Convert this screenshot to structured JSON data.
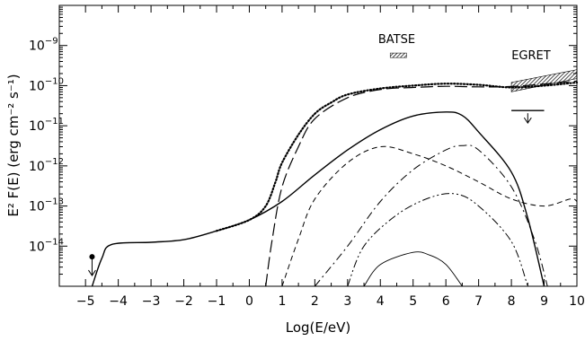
{
  "chart_data": {
    "type": "line",
    "title": "",
    "xlabel": "Log(E/eV)",
    "ylabel": "E² F(E) (erg cm⁻² s⁻¹)",
    "xlim": [
      -5.8,
      10
    ],
    "ylim": [
      1e-15,
      1e-08
    ],
    "yscale": "log",
    "x_ticks": [
      -5,
      -4,
      -3,
      -2,
      -1,
      0,
      1,
      2,
      3,
      4,
      5,
      6,
      7,
      8,
      9,
      10
    ],
    "y_ticks": [
      {
        "value": 1e-14,
        "exp": "−14"
      },
      {
        "value": 1e-13,
        "exp": "−13"
      },
      {
        "value": 1e-12,
        "exp": "−12"
      },
      {
        "value": 1e-11,
        "exp": "−11"
      },
      {
        "value": 1e-10,
        "exp": "−10"
      },
      {
        "value": 1e-09,
        "exp": "−9"
      }
    ],
    "series": [
      {
        "style": "dotted",
        "points": [
          [
            -1,
            2.4e-14
          ],
          [
            0,
            4.5e-14
          ],
          [
            0.5,
            1e-13
          ],
          [
            0.8,
            4e-13
          ],
          [
            1,
            1.2e-12
          ],
          [
            1.5,
            6e-12
          ],
          [
            2,
            2e-11
          ],
          [
            2.5,
            3.8e-11
          ],
          [
            3,
            6e-11
          ],
          [
            4,
            8.5e-11
          ],
          [
            5,
            1e-10
          ],
          [
            6,
            1.12e-10
          ],
          [
            7,
            1.05e-10
          ],
          [
            8,
            9e-11
          ],
          [
            9,
            1e-10
          ],
          [
            10,
            1.2e-10
          ]
        ]
      },
      {
        "style": "long-dash",
        "points": [
          [
            0.5,
            1e-15
          ],
          [
            0.7,
            1.5e-14
          ],
          [
            1,
            3e-13
          ],
          [
            1.5,
            3e-12
          ],
          [
            2,
            1.5e-11
          ],
          [
            3,
            5e-11
          ],
          [
            4,
            8e-11
          ],
          [
            5,
            9e-11
          ],
          [
            6,
            9.6e-11
          ],
          [
            7,
            9.3e-11
          ],
          [
            8,
            9.5e-11
          ],
          [
            9,
            1.1e-10
          ],
          [
            10,
            1.3e-10
          ]
        ]
      },
      {
        "style": "solid",
        "points": [
          [
            -4.8,
            1e-15
          ],
          [
            -4.5,
            5e-15
          ],
          [
            -4.2,
            1.1e-14
          ],
          [
            -3,
            1.25e-14
          ],
          [
            -2,
            1.45e-14
          ],
          [
            -1,
            2.4e-14
          ],
          [
            0,
            4.5e-14
          ],
          [
            1,
            1.3e-13
          ],
          [
            2,
            6e-13
          ],
          [
            3,
            2.5e-12
          ],
          [
            4,
            8e-12
          ],
          [
            5,
            1.75e-11
          ],
          [
            6,
            2.2e-11
          ],
          [
            6.5,
            1.8e-11
          ],
          [
            7,
            7e-12
          ],
          [
            8,
            7e-13
          ],
          [
            8.5,
            5e-14
          ],
          [
            9,
            1e-15
          ]
        ]
      },
      {
        "style": "short-dash",
        "points": [
          [
            1,
            1e-15
          ],
          [
            1.5,
            1.5e-14
          ],
          [
            2,
            1.5e-13
          ],
          [
            3,
            1.2e-12
          ],
          [
            4,
            3e-12
          ],
          [
            5,
            2e-12
          ],
          [
            6,
            1e-12
          ],
          [
            7,
            4e-13
          ],
          [
            8,
            1.5e-13
          ],
          [
            9,
            1e-13
          ],
          [
            9.8,
            1.5e-13
          ],
          [
            10,
            1.3e-13
          ]
        ]
      },
      {
        "style": "dash-dot",
        "points": [
          [
            2,
            1e-15
          ],
          [
            3,
            1e-14
          ],
          [
            4,
            1.3e-13
          ],
          [
            5,
            8e-13
          ],
          [
            6,
            2.5e-12
          ],
          [
            6.5,
            3.2e-12
          ],
          [
            7,
            2.5e-12
          ],
          [
            8,
            3e-13
          ],
          [
            8.7,
            1.5e-14
          ],
          [
            9.1,
            1e-15
          ]
        ]
      },
      {
        "style": "dash-dot-dot",
        "points": [
          [
            3,
            1e-15
          ],
          [
            3.5,
            1e-14
          ],
          [
            4.5,
            6e-14
          ],
          [
            5.5,
            1.6e-13
          ],
          [
            6.3,
            2e-13
          ],
          [
            7,
            1e-13
          ],
          [
            8,
            1.3e-14
          ],
          [
            8.5,
            1e-15
          ]
        ]
      },
      {
        "style": "thin-solid",
        "points": [
          [
            3.5,
            1e-15
          ],
          [
            4,
            3.5e-15
          ],
          [
            5,
            7e-15
          ],
          [
            5.5,
            6e-15
          ],
          [
            6,
            3.5e-15
          ],
          [
            6.5,
            1e-15
          ]
        ]
      }
    ],
    "annotations": [
      {
        "label": "BATSE",
        "box_x": [
          4.3,
          4.8
        ],
        "box_y": [
          5e-10,
          6.5e-10
        ],
        "label_at": [
          4.5,
          1.15e-09
        ]
      },
      {
        "label": "EGRET",
        "band_x": [
          8,
          10
        ],
        "band_lower": [
          7e-11,
          1.5e-10
        ],
        "band_upper": [
          1.2e-10,
          2.5e-10
        ],
        "label_at": [
          8.6,
          4.5e-10
        ]
      }
    ],
    "upper_limits": [
      {
        "x": -4.8,
        "y": 4e-15,
        "marker": "dot"
      },
      {
        "x": 8.5,
        "y": 2.4e-11,
        "marker": "bar",
        "x_span": [
          8,
          9
        ]
      }
    ]
  }
}
